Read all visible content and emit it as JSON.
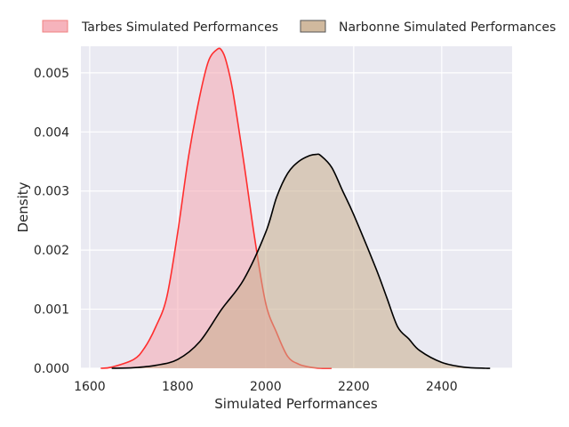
{
  "chart_data": {
    "type": "area",
    "xlabel": "Simulated Performances",
    "ylabel": "Density",
    "xlim": [
      1580,
      2560
    ],
    "ylim": [
      0,
      0.00545
    ],
    "xticks": [
      1600,
      1800,
      2000,
      2200,
      2400
    ],
    "xtick_labels": [
      "1600",
      "1800",
      "2000",
      "2200",
      "2400"
    ],
    "yticks": [
      0,
      0.001,
      0.002,
      0.003,
      0.004,
      0.005
    ],
    "ytick_labels": [
      "0.000",
      "0.001",
      "0.002",
      "0.003",
      "0.004",
      "0.005"
    ],
    "grid": true,
    "legend_position": "top",
    "series": [
      {
        "name": "Tarbes Simulated Performances",
        "color": "#ff2e2e",
        "fill": "#f5a6b0",
        "x": [
          1625,
          1650,
          1700,
          1725,
          1750,
          1775,
          1800,
          1825,
          1850,
          1870,
          1890,
          1900,
          1910,
          1925,
          1950,
          1975,
          2000,
          2025,
          2050,
          2075,
          2100,
          2125,
          2150
        ],
        "y": [
          0.0,
          2e-05,
          0.00015,
          0.00035,
          0.0007,
          0.0012,
          0.0023,
          0.0036,
          0.0046,
          0.0052,
          0.0054,
          0.00538,
          0.0052,
          0.0047,
          0.0035,
          0.0022,
          0.0011,
          0.0006,
          0.0002,
          7e-05,
          2e-05,
          0.0,
          0.0
        ]
      },
      {
        "name": "Narbonne Simulated Performances",
        "color": "#000000",
        "fill": "#c8ad8d",
        "x": [
          1650,
          1700,
          1750,
          1800,
          1850,
          1900,
          1950,
          2000,
          2025,
          2050,
          2075,
          2100,
          2115,
          2125,
          2150,
          2175,
          2200,
          2250,
          2275,
          2300,
          2325,
          2350,
          2400,
          2450,
          2500,
          2510
        ],
        "y": [
          0.0,
          1e-05,
          5e-05,
          0.00015,
          0.00045,
          0.001,
          0.0015,
          0.0023,
          0.0029,
          0.0033,
          0.0035,
          0.0036,
          0.00362,
          0.0036,
          0.0034,
          0.003,
          0.0026,
          0.0017,
          0.0012,
          0.0007,
          0.0005,
          0.0003,
          0.0001,
          2e-05,
          0.0,
          0.0
        ]
      }
    ]
  }
}
